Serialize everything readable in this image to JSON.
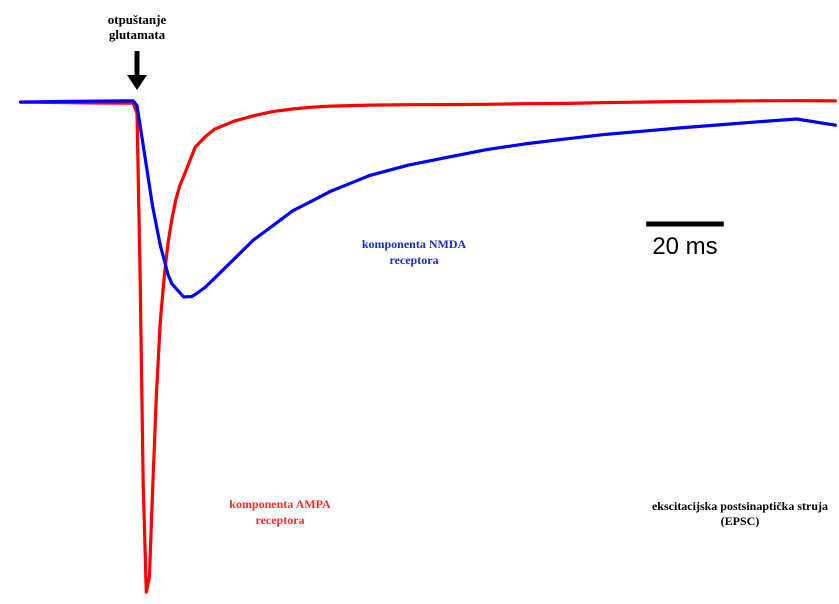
{
  "chart_data": {
    "type": "line",
    "title": "",
    "xlabel": "",
    "ylabel": "",
    "time_unit": "ms",
    "current_unit": "relative (fraction of AMPA peak)",
    "x": [
      -30,
      -20,
      -10,
      -1,
      0,
      0.8,
      1.6,
      2.4,
      3.2,
      4,
      5,
      6,
      7,
      8,
      9,
      10,
      11,
      12,
      13,
      14,
      15,
      17.5,
      20,
      25,
      30,
      35,
      40,
      45,
      50,
      55,
      60,
      70,
      80,
      90,
      100,
      110,
      120,
      130,
      140,
      150,
      160,
      170,
      180
    ],
    "series": [
      {
        "name": "komponenta AMPA receptora",
        "color": "#ff0000",
        "values": [
          0,
          0,
          0,
          0,
          -0.02,
          -0.35,
          -0.78,
          -1.0,
          -0.97,
          -0.8,
          -0.6,
          -0.45,
          -0.36,
          -0.29,
          -0.24,
          -0.2,
          -0.17,
          -0.15,
          -0.13,
          -0.11,
          -0.09,
          -0.07,
          -0.055,
          -0.04,
          -0.03,
          -0.022,
          -0.017,
          -0.013,
          -0.01,
          -0.008,
          -0.006,
          -0.004,
          -0.003,
          -0.002,
          -0.001,
          -0.001,
          0,
          0,
          0,
          0,
          0,
          0,
          0
        ]
      },
      {
        "name": "komponenta NMDA receptora",
        "color": "#0000ff",
        "values": [
          0,
          0,
          0,
          0,
          -0.01,
          -0.05,
          -0.09,
          -0.13,
          -0.17,
          -0.21,
          -0.25,
          -0.29,
          -0.32,
          -0.35,
          -0.37,
          -0.38,
          -0.39,
          -0.4,
          -0.4,
          -0.4,
          -0.395,
          -0.38,
          -0.36,
          -0.32,
          -0.28,
          -0.25,
          -0.22,
          -0.2,
          -0.18,
          -0.165,
          -0.15,
          -0.13,
          -0.115,
          -0.1,
          -0.088,
          -0.078,
          -0.068,
          -0.06,
          -0.052,
          -0.045,
          -0.038,
          -0.032,
          -0.045
        ]
      }
    ],
    "annotations": {
      "arrow_label_line1": "otpuštanje",
      "arrow_label_line2": "glutamata",
      "nmda_label_line1": "komponenta NMDA",
      "nmda_label_line2": "receptora",
      "ampa_label_line1": "komponenta AMPA",
      "ampa_label_line2": "receptora",
      "epsc_label_line1": "ekscitacijska postsinaptička struja",
      "epsc_label_line2": "(EPSC)",
      "scale_bar_label": "20 ms",
      "scale_bar_ms": 20
    },
    "grid": false,
    "legend": "none"
  }
}
